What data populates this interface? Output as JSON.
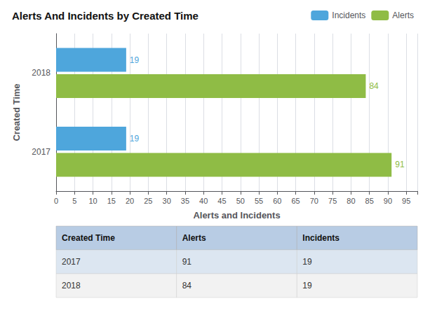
{
  "chart_data": {
    "type": "bar",
    "orientation": "horizontal",
    "title": "Alerts And Incidents by Created Time",
    "categories": [
      "2017",
      "2018"
    ],
    "series": [
      {
        "name": "Incidents",
        "color": "#4ea6dc",
        "values": [
          19,
          19
        ]
      },
      {
        "name": "Alerts",
        "color": "#8fbc45",
        "values": [
          91,
          84
        ]
      }
    ],
    "xlabel": "Alerts and Incidents",
    "ylabel": "Created Time",
    "xlim": [
      0,
      98
    ],
    "xticks": [
      0,
      5,
      10,
      15,
      20,
      25,
      30,
      35,
      40,
      45,
      50,
      55,
      60,
      65,
      70,
      75,
      80,
      85,
      90,
      95
    ],
    "grid": true,
    "legend": "upper right",
    "data_labels": true,
    "table": {
      "headers": [
        "Created Time",
        "Alerts",
        "Incidents"
      ],
      "rows": [
        [
          "2017",
          "91",
          "19"
        ],
        [
          "2018",
          "84",
          "19"
        ]
      ]
    }
  }
}
